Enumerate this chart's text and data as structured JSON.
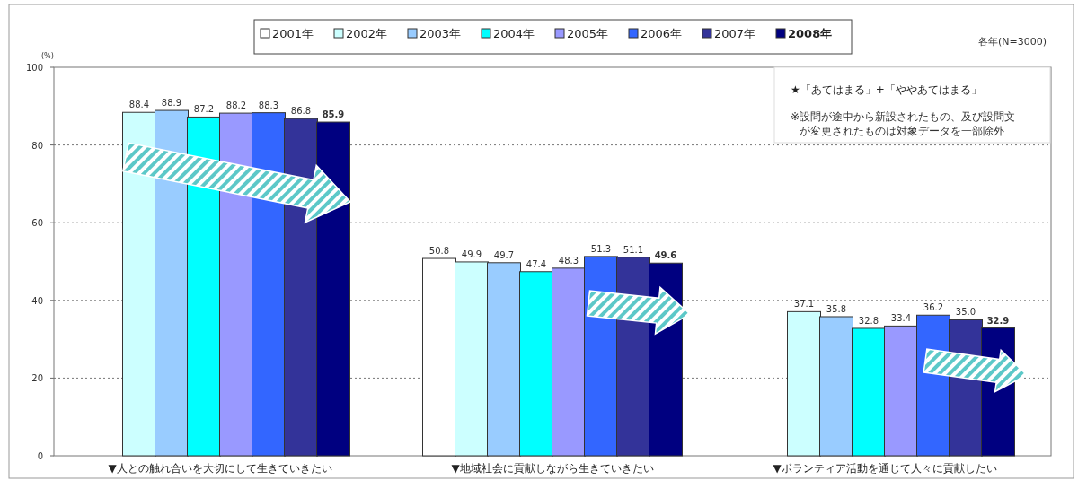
{
  "chart_data": {
    "type": "bar",
    "ylabel": "(%)",
    "categories": [
      "▼人との触れ合いを大切にして生きていきたい",
      "▼地域社会に貢献しながら生きていきたい",
      "▼ボランティア活動を通じて人々に貢献したい"
    ],
    "series": [
      {
        "name": "2001年",
        "color": "#ffffff",
        "values": [
          null,
          50.8,
          null
        ],
        "value_labels": [
          null,
          "50.8",
          null
        ]
      },
      {
        "name": "2002年",
        "color": "#ccffff",
        "values": [
          88.4,
          49.9,
          37.1
        ],
        "value_labels": [
          "88.4",
          "49.9",
          "37.1"
        ]
      },
      {
        "name": "2003年",
        "color": "#99ccff",
        "values": [
          88.9,
          49.7,
          35.8
        ],
        "value_labels": [
          "88.9",
          "49.7",
          "35.8"
        ]
      },
      {
        "name": "2004年",
        "color": "#00ffff",
        "values": [
          87.2,
          47.4,
          32.8
        ],
        "value_labels": [
          "87.2",
          "47.4",
          "32.8"
        ]
      },
      {
        "name": "2005年",
        "color": "#9999ff",
        "values": [
          88.2,
          48.3,
          33.4
        ],
        "value_labels": [
          "88.2",
          "48.3",
          "33.4"
        ]
      },
      {
        "name": "2006年",
        "color": "#3366ff",
        "values": [
          88.3,
          51.3,
          36.2
        ],
        "value_labels": [
          "88.3",
          "51.3",
          "36.2"
        ]
      },
      {
        "name": "2007年",
        "color": "#333399",
        "values": [
          86.8,
          51.1,
          35.0
        ],
        "value_labels": [
          "86.8",
          "51.1",
          "35.0"
        ]
      },
      {
        "name": "2008年",
        "color": "#000080",
        "values": [
          85.9,
          49.6,
          32.9
        ],
        "value_labels": [
          "85.9",
          "49.6",
          "32.9"
        ]
      }
    ],
    "ylim": [
      0,
      100
    ],
    "yticks": [
      0,
      20,
      40,
      60,
      80,
      100
    ],
    "grid": "y",
    "legend": "top",
    "annotations": [
      "各年(N=3000)",
      "★「あてはまる」+「ややあてはまる」",
      "※設問が途中から新設されたもの、及び設問文が変更されたものは対象データを一部除外"
    ]
  }
}
